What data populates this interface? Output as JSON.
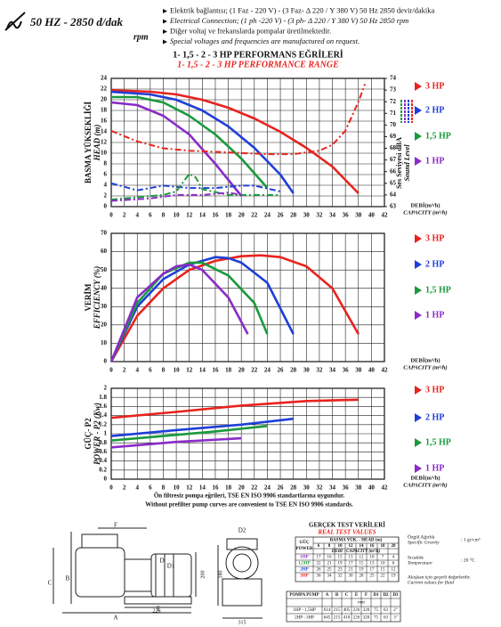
{
  "header": {
    "speed": "50 HZ - 2850 d/dak",
    "rpm": "rpm",
    "lines": [
      "Elektrik bağlantısı; (1 Faz - 220 V) - (3 Faz- Δ 220 / Y 380 V) 50 Hz 2850 devir/dakika",
      "Electrical Connection; (1 ph -220 V) - (3 ph- Δ 220 / Y 380 V) 50 Hz 2850 rpm",
      "Diğer voltaj ve frekanslarda pompalar üretilmektedir.",
      "Special voltages and frequencies are manufactured on request."
    ]
  },
  "chart_data": [
    {
      "type": "line",
      "title": "1- 1,5 - 2 - 3 HP PERFORMANS EĞRİLERİ",
      "subtitle": "1- 1,5 - 2 - 3 HP PERFORMANCE RANGE",
      "ylabel": [
        "BASMA YÜKSEKLİĞİ",
        "HEAD (m)"
      ],
      "y2label": [
        "Ses Seviyesi dBA",
        "Sound Level"
      ],
      "xlabel": [
        "DEBİ(m³/h)",
        "CAPACITY (m³/h)"
      ],
      "xlim": [
        0,
        42
      ],
      "xticks": [
        0,
        2,
        4,
        6,
        8,
        10,
        12,
        14,
        16,
        18,
        20,
        22,
        24,
        26,
        28,
        30,
        32,
        34,
        36,
        38,
        40,
        42
      ],
      "ylim": [
        0,
        24
      ],
      "yticks": [
        0,
        2,
        4,
        6,
        8,
        10,
        12,
        14,
        16,
        18,
        20,
        22,
        24
      ],
      "y2lim": [
        63,
        74
      ],
      "y2ticks": [
        63,
        64,
        65,
        66,
        67,
        68,
        69,
        70,
        71,
        72,
        73,
        74
      ],
      "grid": true,
      "series": [
        {
          "name": "3 HP",
          "color": "#e8231f",
          "x": [
            0,
            6,
            10,
            14,
            18,
            22,
            26,
            30,
            34,
            38
          ],
          "values": [
            21.8,
            21.5,
            21,
            20,
            18.5,
            16.5,
            14,
            11,
            7.5,
            2.5
          ]
        },
        {
          "name": "2 HP",
          "color": "#1f3fd8",
          "x": [
            0,
            6,
            10,
            14,
            18,
            22,
            26,
            28
          ],
          "values": [
            21.5,
            21,
            20,
            18,
            15,
            11,
            6,
            2.5
          ]
        },
        {
          "name": "1,5 HP",
          "color": "#1a9a3c",
          "x": [
            0,
            4,
            8,
            12,
            16,
            20,
            24
          ],
          "values": [
            20.5,
            20.5,
            19.5,
            17,
            13.5,
            9,
            3.5
          ]
        },
        {
          "name": "1 HP",
          "color": "#8a2bc8",
          "x": [
            0,
            4,
            8,
            12,
            16,
            18,
            20
          ],
          "values": [
            19.5,
            19,
            17,
            13.5,
            8,
            5,
            2
          ]
        },
        {
          "axis": "y2",
          "style": "dash-dot",
          "color": "#e8231f",
          "x": [
            0,
            4,
            8,
            12,
            16,
            20,
            24,
            28,
            32,
            34,
            36,
            38,
            39
          ],
          "values": [
            69.5,
            68.6,
            68,
            67.8,
            67.7,
            67.6,
            67.5,
            67.5,
            67.8,
            68.3,
            69.5,
            72,
            73.5
          ]
        },
        {
          "axis": "y2",
          "style": "dash-dot",
          "color": "#1f3fd8",
          "x": [
            0,
            4,
            8,
            12,
            16,
            20,
            22,
            26
          ],
          "values": [
            65,
            64.4,
            64.8,
            64.6,
            64.6,
            64.8,
            64.8,
            64.3
          ]
        },
        {
          "axis": "y2",
          "style": "dash-dot",
          "color": "#1a9a3c",
          "x": [
            0,
            8,
            10,
            12,
            13,
            14,
            18,
            22,
            26
          ],
          "values": [
            63.6,
            64,
            64.3,
            65.8,
            65.5,
            64.5,
            64,
            64,
            64
          ]
        },
        {
          "axis": "y2",
          "style": "dash-dot",
          "color": "#8a2bc8",
          "x": [
            0,
            6,
            10,
            14,
            18,
            20
          ],
          "values": [
            63.5,
            63.7,
            64,
            64,
            64.2,
            64
          ]
        }
      ]
    },
    {
      "type": "line",
      "ylabel": [
        "VERİM",
        "EFFICIENCY (%)"
      ],
      "xlabel": [
        "DEBİ(m³/h)",
        "CAPACITY (m³/h)"
      ],
      "xlim": [
        0,
        42
      ],
      "xticks": [
        0,
        2,
        4,
        6,
        8,
        10,
        12,
        14,
        16,
        18,
        20,
        22,
        24,
        26,
        28,
        30,
        32,
        34,
        36,
        38,
        40,
        42
      ],
      "ylim": [
        0,
        70
      ],
      "yticks": [
        0,
        10,
        20,
        30,
        40,
        50,
        60,
        70
      ],
      "grid": true,
      "series": [
        {
          "name": "3 HP",
          "color": "#e8231f",
          "x": [
            0,
            4,
            8,
            12,
            16,
            20,
            23,
            26,
            30,
            34,
            38
          ],
          "values": [
            0,
            25,
            40,
            50,
            55,
            57.5,
            58,
            57,
            52,
            40,
            15
          ]
        },
        {
          "name": "2 HP",
          "color": "#1f3fd8",
          "x": [
            0,
            4,
            8,
            12,
            16,
            18,
            20,
            24,
            28
          ],
          "values": [
            0,
            30,
            45,
            53,
            57,
            56.5,
            54,
            43,
            15
          ]
        },
        {
          "name": "1,5 HP",
          "color": "#1a9a3c",
          "x": [
            0,
            4,
            8,
            12,
            14,
            18,
            22,
            24
          ],
          "values": [
            0,
            32,
            48,
            54,
            54,
            47,
            32,
            15
          ]
        },
        {
          "name": "1 HP",
          "color": "#8a2bc8",
          "x": [
            0,
            4,
            8,
            10,
            12,
            14,
            18,
            21
          ],
          "values": [
            0,
            35,
            48,
            52,
            53,
            50,
            35,
            15
          ]
        }
      ]
    },
    {
      "type": "line",
      "ylabel": [
        "GÜÇ- P2",
        "POWER - P2 (Kw)"
      ],
      "xlabel": [
        "DEBİ(m³/h)",
        "CAPACITY (m³/h)"
      ],
      "xlim": [
        0,
        42
      ],
      "xticks": [
        0,
        2,
        4,
        6,
        8,
        10,
        12,
        14,
        16,
        18,
        20,
        22,
        24,
        26,
        28,
        30,
        32,
        34,
        36,
        38,
        40,
        42
      ],
      "ylim": [
        0,
        2
      ],
      "yticks": [
        0,
        0.2,
        0.4,
        0.6,
        0.8,
        1,
        1.2,
        1.4,
        1.6,
        1.8,
        2
      ],
      "grid": true,
      "series": [
        {
          "name": "3 HP",
          "color": "#e8231f",
          "x": [
            0,
            10,
            20,
            30,
            38
          ],
          "values": [
            1.35,
            1.48,
            1.62,
            1.72,
            1.75
          ]
        },
        {
          "name": "2 HP",
          "color": "#1f3fd8",
          "x": [
            0,
            10,
            20,
            28
          ],
          "values": [
            0.95,
            1.08,
            1.2,
            1.33
          ]
        },
        {
          "name": "1,5 HP",
          "color": "#1a9a3c",
          "x": [
            0,
            8,
            16,
            24
          ],
          "values": [
            0.85,
            0.95,
            1.05,
            1.17
          ]
        },
        {
          "name": "1 HP",
          "color": "#8a2bc8",
          "x": [
            0,
            10,
            20
          ],
          "values": [
            0.7,
            0.82,
            0.9
          ]
        }
      ]
    }
  ],
  "footnote": [
    "Ön filtresiz pompa eğrileri, TSE EN ISO 9906 standartlarına uygundur.",
    "Without prefilter pump curves are convenient to TSE EN ISO 9906 standards."
  ],
  "drawing": {
    "labels": [
      "F",
      "D2",
      "D",
      "D1",
      "C",
      "B",
      "A",
      "E"
    ],
    "dimensions": [
      226,
      200,
      180,
      315
    ]
  },
  "test_table": {
    "title": "GERÇEK TEST VERİLERİ",
    "subtitle": "REAL TEST VALUES",
    "power_header": [
      "GÜÇ",
      "POWER"
    ],
    "head_header": "BASMA YÜK. - HEAD (m)",
    "heads": [
      6,
      8,
      10,
      12,
      14,
      16,
      18,
      20
    ],
    "capacity_header": "DEBİ - CAPACITY (m³/h)",
    "rows": [
      {
        "label": "1HP",
        "color": "#8a2bc8",
        "values": [
          17,
          16,
          15,
          13,
          12,
          10,
          7,
          4
        ]
      },
      {
        "label": "1,5HP",
        "color": "#1a9a3c",
        "values": [
          22,
          21,
          19,
          17,
          15,
          13,
          10,
          6
        ]
      },
      {
        "label": "2HP",
        "color": "#1f3fd8",
        "values": [
          26,
          25,
          23,
          21,
          19,
          17,
          15,
          12
        ]
      },
      {
        "label": "3HP",
        "color": "#e8231f",
        "values": [
          36,
          34,
          32,
          30,
          28,
          25,
          22,
          19
        ]
      }
    ]
  },
  "notes": [
    {
      "tr": "Özgül Ağırlık",
      "en": "Specific Gravity",
      "value": ": 1 gr/cm³"
    },
    {
      "tr": "Sıcaklık",
      "en": "Temperature",
      "value": ": 20 °C"
    },
    {
      "tr": "Akışkan için geçerli değerlerdir.",
      "en": "Current values for fluid"
    }
  ],
  "dims_table": {
    "headers": [
      "POMPA PUMP",
      "A",
      "B",
      "C",
      "E",
      "F",
      "D1",
      "D2",
      "D3"
    ],
    "unit": "mm",
    "rows": [
      [
        "1HP - 1,5HP",
        614,
        215,
        405,
        226,
        320,
        75,
        63,
        "2\""
      ],
      [
        "2HP - 3HP",
        645,
        215,
        410,
        226,
        320,
        75,
        63,
        "3\""
      ]
    ]
  }
}
